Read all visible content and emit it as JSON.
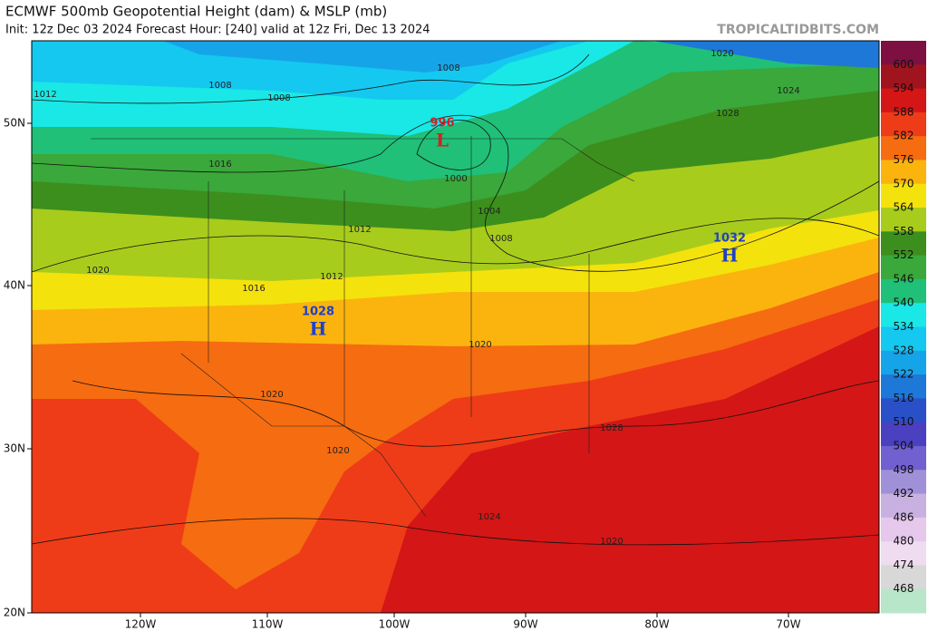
{
  "header": {
    "title": "ECMWF 500mb Geopotential Height (dam) & MSLP (mb)",
    "subtitle": "Init: 12z Dec 03 2024   Forecast Hour: [240]   valid at 12z Fri, Dec 13 2024",
    "watermark": "TROPICALTIDBITS.COM"
  },
  "colorbar": {
    "labels": [
      600,
      594,
      588,
      582,
      576,
      570,
      564,
      558,
      552,
      546,
      540,
      534,
      528,
      522,
      516,
      510,
      504,
      498,
      492,
      486,
      480,
      474,
      468
    ],
    "colors": [
      "#7d1040",
      "#a0141e",
      "#d41616",
      "#ee3c18",
      "#f66c10",
      "#fbb40e",
      "#f4e20c",
      "#a8cc1c",
      "#3c8f1c",
      "#3aa83a",
      "#20c078",
      "#19e8e6",
      "#15c8f0",
      "#16a4e8",
      "#1d78d8",
      "#2a50c8",
      "#4a40c0",
      "#7060d0",
      "#a090d8",
      "#c8b0e0",
      "#e6c8ec",
      "#f0dcf0",
      "#d8d8d8",
      "#b8e6c8"
    ]
  },
  "latitudes": [
    "50N",
    "40N",
    "30N",
    "20N"
  ],
  "longitudes": [
    "120W",
    "110W",
    "100W",
    "90W",
    "80W",
    "70W"
  ],
  "pressure_centers": [
    {
      "label": "L",
      "value": "996"
    },
    {
      "label": "H",
      "value": "1028"
    },
    {
      "label": "H",
      "value": "1032"
    }
  ],
  "contour_labels": [
    "1012",
    "1008",
    "1008",
    "1008",
    "1020",
    "1024",
    "1028",
    "1016",
    "1000",
    "1004",
    "1008",
    "1012",
    "1012",
    "1020",
    "1016",
    "1020",
    "1020",
    "1028",
    "1020",
    "1024",
    "1020"
  ]
}
